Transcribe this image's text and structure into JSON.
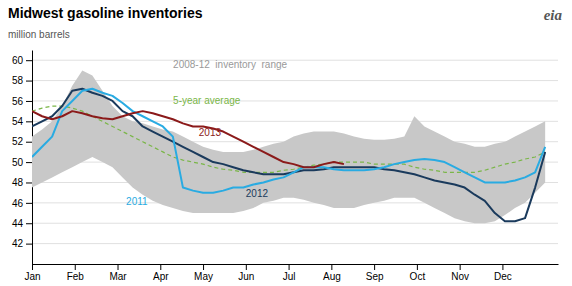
{
  "chart_data": {
    "type": "line",
    "title": "Midwest gasoline inventories",
    "ylabel": "million barrels",
    "x": [
      0,
      0.2352941176470588,
      0.4705882352941176,
      0.7058823529411765,
      0.9411764705882353,
      1.1764705882352942,
      1.4117647058823528,
      1.647058823529412,
      1.8823529411764706,
      2.1176470588235294,
      2.3529411764705883,
      2.588235294117647,
      2.823529411764706,
      3.0588235294117645,
      3.2941176470588234,
      3.5294117647058822,
      3.764705882352941,
      4,
      4.235294117647059,
      4.470588235294118,
      4.705882352941177,
      4.9411764705882355,
      5.176470588235294,
      5.411764705882353,
      5.647058823529412,
      5.882352941176471,
      6.117647058823529,
      6.352941176470588,
      6.588235294117647,
      6.823529411764706,
      7.0588235294117645,
      7.294117647058823,
      7.529411764705882,
      7.764705882352941,
      8,
      8.235294117647058,
      8.470588235294118,
      8.705882352941176,
      8.941176470588236,
      9.176470588235293,
      9.411764705882353,
      9.647058823529411,
      9.882352941176471,
      10.117647058823529,
      10.352941176470589,
      10.588235294117647,
      10.823529411764707,
      11.058823529411764,
      11.294117647058824,
      11.529411764705882,
      11.76470588235294,
      12
    ],
    "xlim": [
      0,
      12.3
    ],
    "xticks": [
      {
        "value": 0,
        "label": "Jan"
      },
      {
        "value": 1,
        "label": "Feb"
      },
      {
        "value": 2,
        "label": "Mar"
      },
      {
        "value": 3,
        "label": "Apr"
      },
      {
        "value": 4,
        "label": "May"
      },
      {
        "value": 5,
        "label": "Jun"
      },
      {
        "value": 6,
        "label": "Jul"
      },
      {
        "value": 7,
        "label": "Aug"
      },
      {
        "value": 8,
        "label": "Sep"
      },
      {
        "value": 9,
        "label": "Oct"
      },
      {
        "value": 10,
        "label": "Nov"
      },
      {
        "value": 11,
        "label": "Dec"
      }
    ],
    "ylim": [
      40,
      61
    ],
    "yticks": [
      42,
      44,
      46,
      48,
      50,
      52,
      54,
      56,
      58,
      60
    ],
    "grid": true,
    "series": [
      {
        "type": "area",
        "color": "#c8c8c8",
        "upper": [
          52.5,
          53.2,
          54.0,
          55.5,
          57.5,
          59.0,
          58.5,
          57.0,
          55.5,
          54.5,
          54.0,
          53.8,
          53.5,
          53.2,
          53.0,
          52.5,
          52.0,
          51.5,
          51.2,
          51.0,
          51.0,
          51.0,
          51.2,
          51.5,
          51.8,
          52.0,
          52.5,
          52.8,
          53.0,
          53.0,
          53.0,
          52.8,
          52.5,
          52.3,
          52.2,
          52.2,
          52.3,
          52.5,
          54.5,
          53.5,
          53.0,
          52.5,
          52.0,
          51.8,
          51.5,
          51.5,
          51.8,
          52.0,
          52.5,
          53.0,
          53.5,
          54.0
        ],
        "lower": [
          47.5,
          48.0,
          48.5,
          49.0,
          49.5,
          50.0,
          50.5,
          50.0,
          49.5,
          48.5,
          47.5,
          46.8,
          46.2,
          45.8,
          45.5,
          45.2,
          45.0,
          45.0,
          45.0,
          45.0,
          45.0,
          45.2,
          45.5,
          46.0,
          46.2,
          46.5,
          46.5,
          46.3,
          46.0,
          45.8,
          45.5,
          45.5,
          45.5,
          45.8,
          46.0,
          46.2,
          46.5,
          46.5,
          46.5,
          46.0,
          45.5,
          45.0,
          44.5,
          44.2,
          44.0,
          44.0,
          44.2,
          44.8,
          45.5,
          46.0,
          47.0,
          48.0
        ]
      },
      {
        "type": "line",
        "color": "#7ab648",
        "line_style": "dashed",
        "values": [
          55.0,
          55.3,
          55.5,
          55.5,
          55.3,
          55.0,
          54.5,
          54.0,
          53.5,
          53.0,
          52.5,
          52.0,
          51.5,
          51.0,
          50.5,
          50.2,
          50.0,
          49.8,
          49.5,
          49.3,
          49.2,
          49.0,
          49.0,
          49.0,
          49.0,
          49.2,
          49.3,
          49.5,
          49.7,
          49.8,
          50.0,
          50.0,
          50.0,
          50.0,
          49.8,
          49.8,
          49.8,
          49.8,
          49.5,
          49.3,
          49.2,
          49.0,
          49.0,
          49.0,
          49.0,
          49.2,
          49.5,
          49.8,
          50.0,
          50.3,
          50.5,
          51.0
        ]
      },
      {
        "type": "line",
        "color": "#1a3a5c",
        "line_style": "solid",
        "values": [
          53.5,
          54.0,
          54.5,
          55.5,
          57.0,
          57.2,
          56.8,
          56.5,
          56.0,
          55.0,
          54.5,
          53.5,
          53.0,
          52.5,
          52.0,
          51.5,
          51.0,
          50.5,
          50.0,
          49.8,
          49.5,
          49.2,
          49.0,
          48.8,
          48.8,
          48.8,
          49.0,
          49.2,
          49.2,
          49.3,
          49.5,
          49.5,
          49.5,
          49.5,
          49.5,
          49.3,
          49.2,
          49.0,
          48.8,
          48.5,
          48.2,
          48.0,
          47.8,
          47.5,
          46.8,
          46.2,
          45.0,
          44.2,
          44.2,
          44.5,
          47.5,
          51.0
        ]
      },
      {
        "type": "line",
        "color": "#29abe2",
        "line_style": "solid",
        "values": [
          50.5,
          51.5,
          52.5,
          55.0,
          56.0,
          57.0,
          57.2,
          56.8,
          56.5,
          55.8,
          55.0,
          54.5,
          54.0,
          53.5,
          52.5,
          47.5,
          47.2,
          47.0,
          47.0,
          47.2,
          47.5,
          47.5,
          47.8,
          48.0,
          48.3,
          48.5,
          49.0,
          49.5,
          49.5,
          49.5,
          49.3,
          49.2,
          49.2,
          49.2,
          49.3,
          49.5,
          49.8,
          50.0,
          50.2,
          50.3,
          50.2,
          50.0,
          49.5,
          49.0,
          48.5,
          48.0,
          48.0,
          48.0,
          48.2,
          48.5,
          49.0,
          51.5
        ]
      },
      {
        "type": "line",
        "color": "#8b1a1a",
        "line_style": "solid",
        "values": [
          55.0,
          54.5,
          54.2,
          54.5,
          55.0,
          54.8,
          54.5,
          54.3,
          54.2,
          54.5,
          54.8,
          55.0,
          54.8,
          54.5,
          54.2,
          53.8,
          53.5,
          53.5,
          53.3,
          53.0,
          52.5,
          52.0,
          51.5,
          51.0,
          50.5,
          50.0,
          49.8,
          49.5,
          49.5,
          49.8,
          50.0,
          49.8,
          null,
          null,
          null,
          null,
          null,
          null,
          null,
          null,
          null,
          null,
          null,
          null,
          null,
          null,
          null,
          null,
          null,
          null,
          null,
          null
        ]
      }
    ],
    "annotations": [
      {
        "text": "2008-12  inventory  range",
        "x": 3.3,
        "y": 59.5,
        "color": "#999999"
      },
      {
        "text": "5-year average",
        "x": 3.3,
        "y": 56.0,
        "color": "#7ab648"
      },
      {
        "text": "2013",
        "x": 3.9,
        "y": 52.8,
        "color": "#8b1a1a"
      },
      {
        "text": "2012",
        "x": 5.0,
        "y": 46.8,
        "color": "#1a3a5c"
      },
      {
        "text": "2011",
        "x": 2.2,
        "y": 46.0,
        "color": "#29abe2"
      },
      {
        "text": "eia",
        "color": "#555555"
      }
    ]
  }
}
